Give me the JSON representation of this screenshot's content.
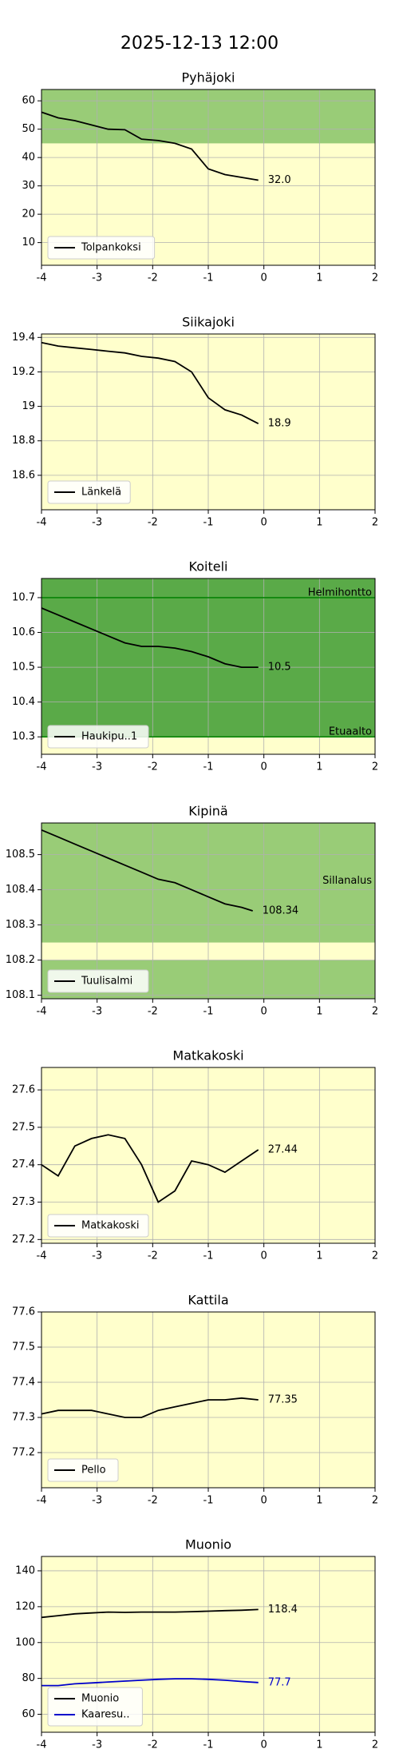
{
  "title": "2025-12-13 12:00",
  "chart_data": [
    {
      "type": "line",
      "title": "Pyhäjoki",
      "xlim": [
        -4,
        2
      ],
      "xticks": [
        -4,
        -3,
        -2,
        -1,
        0,
        1,
        2
      ],
      "ylim": [
        2,
        64
      ],
      "yticks": [
        10,
        20,
        30,
        40,
        50,
        60
      ],
      "grid": true,
      "legend": "lower left",
      "background": "#ffffcc",
      "bands": [
        {
          "from": 45,
          "to": 64,
          "color": "#99cc77"
        }
      ],
      "x": [
        -4,
        -3.7,
        -3.4,
        -3.1,
        -2.8,
        -2.5,
        -2.2,
        -1.9,
        -1.6,
        -1.3,
        -1.0,
        -0.7,
        -0.4,
        -0.1
      ],
      "series": [
        {
          "name": "Tolpankoksi",
          "color": "#000000",
          "end_label": "32.0",
          "values": [
            56,
            54,
            53,
            51.5,
            50,
            49.8,
            46.5,
            46,
            45,
            43,
            36,
            34,
            33,
            32.0
          ]
        }
      ]
    },
    {
      "type": "line",
      "title": "Siikajoki",
      "xlim": [
        -4,
        2
      ],
      "xticks": [
        -4,
        -3,
        -2,
        -1,
        0,
        1,
        2
      ],
      "ylim": [
        18.4,
        19.42
      ],
      "yticks": [
        18.6,
        18.8,
        19.0,
        19.2,
        19.4
      ],
      "grid": true,
      "legend": "lower left",
      "background": "#ffffcc",
      "x": [
        -4,
        -3.7,
        -3.4,
        -3.1,
        -2.8,
        -2.5,
        -2.2,
        -1.9,
        -1.6,
        -1.3,
        -1.0,
        -0.7,
        -0.4,
        -0.1
      ],
      "series": [
        {
          "name": "Länkelä",
          "color": "#000000",
          "end_label": "18.9",
          "values": [
            19.37,
            19.35,
            19.34,
            19.33,
            19.32,
            19.31,
            19.29,
            19.28,
            19.26,
            19.2,
            19.05,
            18.98,
            18.95,
            18.9
          ]
        }
      ]
    },
    {
      "type": "line",
      "title": "Koiteli",
      "xlim": [
        -4,
        2
      ],
      "xticks": [
        -4,
        -3,
        -2,
        -1,
        0,
        1,
        2
      ],
      "ylim": [
        10.25,
        10.755
      ],
      "yticks": [
        10.3,
        10.4,
        10.5,
        10.6,
        10.7
      ],
      "grid": true,
      "legend": "lower left",
      "background": "#ffffcc",
      "bands": [
        {
          "from": 10.3,
          "to": 10.755,
          "color": "#5aaa48"
        }
      ],
      "hlines": [
        {
          "value": 10.7,
          "label": "Helmihontto",
          "color": "#008000"
        },
        {
          "value": 10.3,
          "label": "Etuaalto",
          "color": "#008000"
        }
      ],
      "x": [
        -4,
        -3.7,
        -3.4,
        -3.1,
        -2.8,
        -2.5,
        -2.2,
        -1.9,
        -1.6,
        -1.3,
        -1.0,
        -0.7,
        -0.4,
        -0.1
      ],
      "series": [
        {
          "name": "Haukipu..1",
          "color": "#000000",
          "end_label": "10.5",
          "values": [
            10.67,
            10.65,
            10.63,
            10.61,
            10.59,
            10.57,
            10.56,
            10.56,
            10.555,
            10.545,
            10.53,
            10.51,
            10.5,
            10.5
          ]
        }
      ]
    },
    {
      "type": "line",
      "title": "Kipinä",
      "xlim": [
        -4,
        2
      ],
      "xticks": [
        -4,
        -3,
        -2,
        -1,
        0,
        1,
        2
      ],
      "ylim": [
        108.09,
        108.59
      ],
      "yticks": [
        108.1,
        108.2,
        108.3,
        108.4,
        108.5
      ],
      "grid": true,
      "legend": "lower left",
      "background": "#ffffcc",
      "bands": [
        {
          "from": 108.25,
          "to": 108.59,
          "color": "#99cc77"
        },
        {
          "from": 108.09,
          "to": 108.2,
          "color": "#99cc77"
        }
      ],
      "annotations": [
        "Sillanalus"
      ],
      "x": [
        -4,
        -3.7,
        -3.4,
        -3.1,
        -2.8,
        -2.5,
        -2.2,
        -1.9,
        -1.6,
        -1.3,
        -1.0,
        -0.7,
        -0.4,
        -0.2
      ],
      "series": [
        {
          "name": "Tuulisalmi",
          "color": "#000000",
          "end_label": "108.34",
          "values": [
            108.57,
            108.55,
            108.53,
            108.51,
            108.49,
            108.47,
            108.45,
            108.43,
            108.42,
            108.4,
            108.38,
            108.36,
            108.35,
            108.34
          ]
        }
      ]
    },
    {
      "type": "line",
      "title": "Matkakoski",
      "xlim": [
        -4,
        2
      ],
      "xticks": [
        -4,
        -3,
        -2,
        -1,
        0,
        1,
        2
      ],
      "ylim": [
        27.19,
        27.66
      ],
      "yticks": [
        27.2,
        27.3,
        27.4,
        27.5,
        27.6
      ],
      "grid": true,
      "legend": "lower left",
      "background": "#ffffcc",
      "x": [
        -4,
        -3.7,
        -3.4,
        -3.1,
        -2.8,
        -2.5,
        -2.2,
        -1.9,
        -1.6,
        -1.3,
        -1.0,
        -0.7,
        -0.4,
        -0.1
      ],
      "series": [
        {
          "name": "Matkakoski",
          "color": "#000000",
          "end_label": "27.44",
          "values": [
            27.4,
            27.37,
            27.45,
            27.47,
            27.48,
            27.47,
            27.4,
            27.3,
            27.33,
            27.41,
            27.4,
            27.38,
            27.41,
            27.44
          ]
        }
      ]
    },
    {
      "type": "line",
      "title": "Kattila",
      "xlim": [
        -4,
        2
      ],
      "xticks": [
        -4,
        -3,
        -2,
        -1,
        0,
        1,
        2
      ],
      "ylim": [
        77.1,
        77.6
      ],
      "yticks": [
        77.2,
        77.3,
        77.4,
        77.5,
        77.6
      ],
      "grid": true,
      "legend": "lower left",
      "background": "#ffffcc",
      "x": [
        -4,
        -3.7,
        -3.4,
        -3.1,
        -2.8,
        -2.5,
        -2.2,
        -1.9,
        -1.6,
        -1.3,
        -1.0,
        -0.7,
        -0.4,
        -0.1
      ],
      "series": [
        {
          "name": "Pello",
          "color": "#000000",
          "end_label": "77.35",
          "values": [
            77.31,
            77.32,
            77.32,
            77.32,
            77.31,
            77.3,
            77.3,
            77.32,
            77.33,
            77.34,
            77.35,
            77.35,
            77.355,
            77.35
          ]
        }
      ]
    },
    {
      "type": "line",
      "title": "Muonio",
      "xlim": [
        -4,
        2
      ],
      "xticks": [
        -4,
        -3,
        -2,
        -1,
        0,
        1,
        2
      ],
      "ylim": [
        50,
        148
      ],
      "yticks": [
        60,
        80,
        100,
        120,
        140
      ],
      "grid": true,
      "legend": "lower left",
      "background": "#ffffcc",
      "x": [
        -4,
        -3.7,
        -3.4,
        -3.1,
        -2.8,
        -2.5,
        -2.2,
        -1.9,
        -1.6,
        -1.3,
        -1.0,
        -0.7,
        -0.4,
        -0.1
      ],
      "series": [
        {
          "name": "Muonio",
          "color": "#000000",
          "end_label": "118.4",
          "values": [
            114,
            115,
            116,
            116.5,
            117,
            116.8,
            117,
            117,
            117,
            117.2,
            117.5,
            117.8,
            118,
            118.4
          ]
        },
        {
          "name": "Kaaresu..",
          "color": "#0000cc",
          "end_label": "77.7",
          "values": [
            76,
            76,
            77,
            77.5,
            78,
            78.5,
            79,
            79.5,
            79.8,
            79.8,
            79.5,
            79,
            78.3,
            77.7
          ]
        }
      ]
    }
  ]
}
